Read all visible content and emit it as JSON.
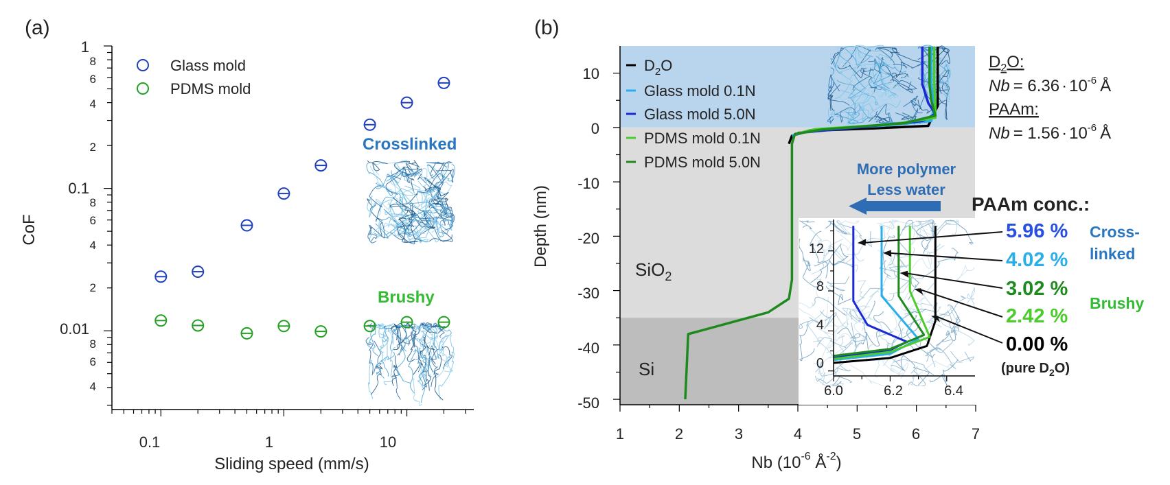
{
  "colors": {
    "glass": "#1f3fbf",
    "pdms": "#22a022",
    "crosslinked_text": "#2a77c0",
    "brushy_text": "#33bb33",
    "water_region": "#b9d5ee",
    "sio2_region": "#dcdcdc",
    "si_region": "#bdbdbd",
    "arrow": "#2e6db4",
    "d2o_line": "#000000",
    "glass01": "#2aaee8",
    "glass50": "#1a28d6",
    "pdms01": "#4ccc2c",
    "pdms50": "#1e8a1e"
  },
  "chart_data": [
    {
      "panel": "(a)",
      "type": "scatter",
      "xscale": "log",
      "yscale": "log",
      "xlabel": "Sliding speed (mm/s)",
      "ylabel": "CoF",
      "xlim": [
        0.04,
        35
      ],
      "ylim": [
        0.0028,
        1
      ],
      "x_tick_labels": [
        "0.1",
        "1",
        "10"
      ],
      "y_tick_labels": [
        "0.01",
        "0.1",
        "1"
      ],
      "y_minor_labels": [
        "4",
        "6",
        "8",
        "2",
        "4",
        "6",
        "8",
        "2",
        "4",
        "6",
        "8"
      ],
      "legend_position": "top-left",
      "series": [
        {
          "name": "Glass mold",
          "color_key": "glass",
          "x": [
            0.1,
            0.2,
            0.5,
            1,
            2,
            5,
            10,
            20
          ],
          "y": [
            0.024,
            0.026,
            0.055,
            0.092,
            0.145,
            0.28,
            0.4,
            0.55
          ]
        },
        {
          "name": "PDMS mold",
          "color_key": "pdms",
          "x": [
            0.1,
            0.2,
            0.5,
            1,
            2,
            5,
            10,
            20
          ],
          "y": [
            0.0118,
            0.0109,
            0.0096,
            0.0108,
            0.0099,
            0.0108,
            0.0115,
            0.0115
          ]
        }
      ],
      "annotations": [
        "Crosslinked",
        "Brushy"
      ]
    },
    {
      "panel": "(b)",
      "type": "line",
      "xlabel_main": "Nb (10",
      "xlabel_sup1": "-6",
      "xlabel_mid": " Å",
      "xlabel_sup2": "-2",
      "xlabel_end": ")",
      "ylabel": "Depth (nm)",
      "xlim": [
        1,
        7
      ],
      "ylim": [
        -51,
        15
      ],
      "x_tick_labels": [
        "1",
        "2",
        "3",
        "4",
        "5",
        "6",
        "7"
      ],
      "y_tick_labels": [
        "10",
        "0",
        "-10",
        "-20",
        "-30",
        "-40",
        "-50"
      ],
      "legend_position": "top-left",
      "series": [
        {
          "name_main": "D",
          "name_sub": "2",
          "name_end": "O",
          "color_key": "d2o_line",
          "x": [
            3.85,
            3.9,
            4.2,
            5.2,
            6.2,
            6.36,
            6.36
          ],
          "y": [
            -3,
            -1.5,
            -0.6,
            -0.2,
            0.3,
            4,
            15
          ]
        },
        {
          "name_main": "Glass mold 0.1N",
          "name_sub": "",
          "name_end": "",
          "color_key": "glass01",
          "x": [
            3.9,
            4.2,
            5.4,
            6.25,
            6.3,
            6.25,
            6.25
          ],
          "y": [
            -1.5,
            -0.5,
            0.3,
            1.2,
            4,
            8,
            15
          ]
        },
        {
          "name_main": "Glass mold 5.0N",
          "name_sub": "",
          "name_end": "",
          "color_key": "glass50",
          "x": [
            4.0,
            5.0,
            6.1,
            6.32,
            6.2,
            6.1,
            6.1
          ],
          "y": [
            -1,
            0,
            1.2,
            2.5,
            4.5,
            8,
            15
          ]
        },
        {
          "name_main": "PDMS mold 0.1N",
          "name_sub": "",
          "name_end": "",
          "color_key": "pdms01",
          "x": [
            3.95,
            4.3,
            5.6,
            6.32,
            6.32,
            6.3,
            6.3
          ],
          "y": [
            -1.2,
            -0.3,
            0.6,
            1.8,
            4,
            8,
            15
          ]
        },
        {
          "name_main": "PDMS mold 5.0N",
          "name_sub": "",
          "name_end": "",
          "color_key": "pdms50",
          "x": [
            2.1,
            2.15,
            3.5,
            3.85,
            3.9,
            3.9,
            3.95,
            4.4,
            5.8,
            6.32,
            6.25,
            6.22,
            6.22
          ],
          "y": [
            -50,
            -38,
            -34,
            -31.5,
            -28,
            -3,
            -1.2,
            -0.4,
            0.8,
            2.2,
            5,
            8,
            15
          ]
        }
      ],
      "regions": [
        {
          "label_main": "SiO",
          "label_sub": "2",
          "color_key": "sio2_region"
        },
        {
          "label_main": "Si",
          "label_sub": "",
          "color_key": "si_region"
        }
      ],
      "arrow_text": [
        "More polymer",
        "Less water"
      ],
      "info": {
        "d2o_label": "D2O:",
        "d2o_value": "= 6.36",
        "paam_label": "PAAm:",
        "paam_value": "= 1.56",
        "nb_symbol": "Nb",
        "dot": "·",
        "ten": "10",
        "exp": "-6",
        "unit": "Å"
      },
      "conc_title": "PAAm conc.:",
      "concentrations": [
        {
          "value": "5.96 %",
          "color_key": "glass50"
        },
        {
          "value": "4.02 %",
          "color_key": "glass01"
        },
        {
          "value": "3.02 %",
          "color_key": "pdms50"
        },
        {
          "value": "2.42 %",
          "color_key": "pdms01"
        },
        {
          "value": "0.00 %",
          "color_key": "d2o_line"
        }
      ],
      "pure_d2o": "(pure D2O)",
      "group_labels": {
        "crosslinked": [
          "Cross-",
          "linked"
        ],
        "brushy": "Brushy"
      }
    },
    {
      "panel": "(b) inset",
      "type": "line",
      "xlim": [
        6.0,
        6.5
      ],
      "ylim": [
        -0.5,
        15
      ],
      "x_tick_labels": [
        "6.0",
        "6.2",
        "6.4"
      ],
      "y_tick_labels": [
        "0",
        "4",
        "8",
        "12"
      ],
      "series": [
        {
          "color_key": "d2o_line",
          "x": [
            6.0,
            6.2,
            6.33,
            6.36,
            6.36
          ],
          "y": [
            0.8,
            1.3,
            2.5,
            5,
            14.5
          ]
        },
        {
          "color_key": "glass01",
          "x": [
            6.0,
            6.2,
            6.3,
            6.17,
            6.17
          ],
          "y": [
            1.1,
            1.7,
            3.2,
            7.5,
            14.5
          ]
        },
        {
          "color_key": "glass50",
          "x": [
            6.0,
            6.2,
            6.26,
            6.12,
            6.07,
            6.07
          ],
          "y": [
            1.3,
            2.1,
            2.9,
            4.6,
            7,
            14.5
          ]
        },
        {
          "color_key": "pdms01",
          "x": [
            6.0,
            6.2,
            6.34,
            6.27,
            6.27
          ],
          "y": [
            1.2,
            1.9,
            3.4,
            8,
            14.5
          ]
        },
        {
          "color_key": "pdms50",
          "x": [
            6.0,
            6.2,
            6.32,
            6.23,
            6.23
          ],
          "y": [
            1.5,
            2.2,
            3.6,
            7.5,
            14.5
          ]
        }
      ]
    }
  ]
}
